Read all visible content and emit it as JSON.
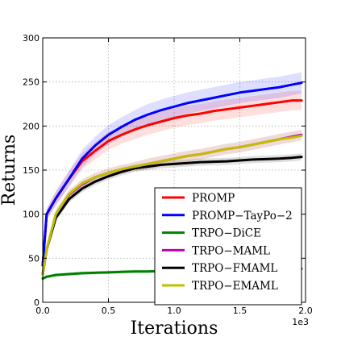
{
  "chart_data": {
    "type": "line",
    "xlabel": "Iterations",
    "ylabel": "Returns",
    "x_offset_label": "1e3",
    "xlim": [
      0,
      2.0
    ],
    "ylim": [
      0,
      300
    ],
    "xticks": [
      "0.0",
      "0.5",
      "1.0",
      "1.5",
      "2.0"
    ],
    "xtick_values": [
      0,
      0.5,
      1.0,
      1.5,
      2.0
    ],
    "yticks": [
      "0",
      "50",
      "100",
      "150",
      "200",
      "250",
      "300"
    ],
    "ytick_values": [
      0,
      50,
      100,
      150,
      200,
      250,
      300
    ],
    "grid": true,
    "legend_position": "lower-right",
    "series": [
      {
        "name": "PROMP",
        "color": "#ff0000",
        "x": [
          0,
          0.03,
          0.1,
          0.2,
          0.3,
          0.4,
          0.5,
          0.6,
          0.7,
          0.8,
          0.9,
          1.0,
          1.1,
          1.2,
          1.3,
          1.4,
          1.5,
          1.6,
          1.7,
          1.8,
          1.9,
          1.97
        ],
        "y": [
          42,
          100,
          118,
          140,
          160,
          172,
          183,
          190,
          196,
          201,
          205,
          209,
          212,
          214,
          217,
          219,
          221,
          223,
          225,
          227,
          229,
          229
        ],
        "band": [
          3,
          6,
          8,
          9,
          9,
          10,
          10,
          10,
          11,
          11,
          11,
          11,
          11,
          11,
          11,
          11,
          11,
          11,
          11,
          11,
          11,
          11
        ]
      },
      {
        "name": "PROMP−TayPo−2",
        "color": "#0000ff",
        "x": [
          0,
          0.03,
          0.1,
          0.2,
          0.3,
          0.4,
          0.5,
          0.6,
          0.7,
          0.8,
          0.9,
          1.0,
          1.1,
          1.2,
          1.3,
          1.4,
          1.5,
          1.6,
          1.7,
          1.8,
          1.9,
          1.97
        ],
        "y": [
          42,
          100,
          118,
          140,
          163,
          178,
          190,
          199,
          207,
          213,
          218,
          222,
          226,
          229,
          232,
          235,
          238,
          240,
          242,
          244,
          247,
          249
        ],
        "band": [
          3,
          6,
          8,
          9,
          10,
          10,
          11,
          11,
          11,
          12,
          12,
          12,
          12,
          12,
          12,
          12,
          12,
          12,
          12,
          12,
          12,
          12
        ]
      },
      {
        "name": "TRPO−DiCE",
        "color": "#008000",
        "x": [
          0,
          0.03,
          0.1,
          0.2,
          0.3,
          0.4,
          0.5,
          0.6,
          0.7,
          0.8,
          0.9,
          1.0,
          1.1,
          1.2,
          1.3,
          1.4,
          1.5,
          1.6,
          1.7,
          1.8,
          1.9,
          1.97
        ],
        "y": [
          27,
          29,
          31,
          32,
          33,
          33.5,
          34,
          34.5,
          35,
          35,
          35.5,
          36,
          36,
          36.5,
          36.5,
          37,
          37,
          37,
          37.5,
          37.5,
          38,
          38
        ],
        "band": [
          2,
          2,
          2,
          2,
          2,
          2,
          2,
          2,
          2,
          2,
          2,
          2,
          2,
          2,
          2,
          2,
          2,
          2,
          2,
          2,
          2,
          2
        ]
      },
      {
        "name": "TRPO−MAML",
        "color": "#bf00bf",
        "x": [
          0,
          0.03,
          0.1,
          0.2,
          0.3,
          0.4,
          0.5,
          0.6,
          0.7,
          0.8,
          0.9,
          1.0,
          1.1,
          1.2,
          1.3,
          1.4,
          1.5,
          1.6,
          1.7,
          1.8,
          1.9,
          1.97
        ],
        "y": [
          32,
          60,
          100,
          122,
          134,
          142,
          147,
          151,
          154,
          157,
          160,
          163,
          166,
          168,
          171,
          174,
          176,
          179,
          182,
          185,
          188,
          190
        ],
        "band": [
          3,
          4,
          5,
          5,
          5,
          5,
          5,
          5,
          5,
          6,
          6,
          6,
          6,
          6,
          6,
          6,
          6,
          6,
          6,
          6,
          6,
          6
        ]
      },
      {
        "name": "TRPO−FMAML",
        "color": "#000000",
        "x": [
          0,
          0.03,
          0.1,
          0.2,
          0.3,
          0.4,
          0.5,
          0.6,
          0.7,
          0.8,
          0.9,
          1.0,
          1.1,
          1.2,
          1.3,
          1.4,
          1.5,
          1.6,
          1.7,
          1.8,
          1.9,
          1.97
        ],
        "y": [
          32,
          60,
          96,
          117,
          129,
          137,
          143,
          148,
          152,
          154,
          156,
          157,
          158,
          159,
          159.5,
          160,
          161,
          162,
          162.5,
          163,
          164,
          165
        ],
        "band": [
          3,
          4,
          4,
          4,
          4,
          4,
          4,
          4,
          4,
          4,
          4,
          4,
          4,
          4,
          4,
          4,
          4,
          4,
          4,
          4,
          4,
          4
        ]
      },
      {
        "name": "TRPO−EMAML",
        "color": "#bfbf00",
        "x": [
          0,
          0.03,
          0.1,
          0.2,
          0.3,
          0.4,
          0.5,
          0.6,
          0.7,
          0.8,
          0.9,
          1.0,
          1.1,
          1.2,
          1.3,
          1.4,
          1.5,
          1.6,
          1.7,
          1.8,
          1.9,
          1.97
        ],
        "y": [
          32,
          60,
          100,
          123,
          135,
          142,
          147,
          151,
          154,
          157,
          160,
          163,
          166,
          168,
          171,
          174,
          176,
          179,
          182,
          185,
          187,
          189
        ],
        "band": [
          3,
          4,
          5,
          5,
          5,
          5,
          5,
          5,
          5,
          6,
          6,
          6,
          6,
          6,
          6,
          6,
          6,
          6,
          6,
          6,
          6,
          6
        ]
      }
    ]
  }
}
